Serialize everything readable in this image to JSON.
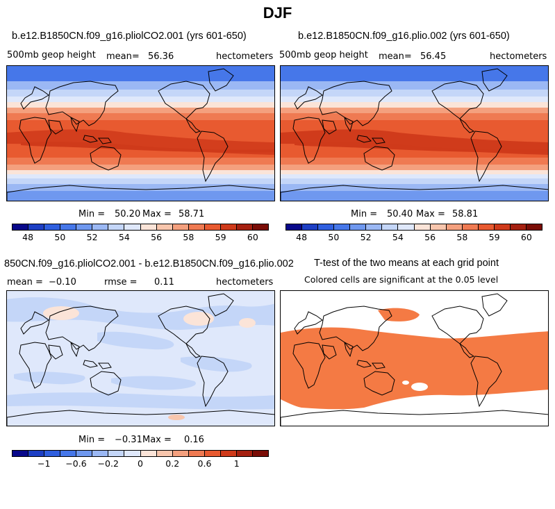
{
  "figure": {
    "title": "DJF"
  },
  "palette": {
    "bwr": [
      "#08088a",
      "#1d3fc4",
      "#2f5fdf",
      "#4677e9",
      "#6f98ef",
      "#9bb8f4",
      "#c4d6f8",
      "#dfe8fb",
      "#fbe4d8",
      "#f8c6ad",
      "#f4a07e",
      "#ef7a52",
      "#e85a30",
      "#cf3a1a",
      "#a52010",
      "#7a0d06"
    ],
    "significant": "#f47a44",
    "ocean_background": "#fff"
  },
  "panels": {
    "p1": {
      "title": "b.e12.B1850CN.f09_g16.pliolCO2.001 (yrs 601-650)",
      "left_label": "500mb geop height",
      "mean_label": "mean=",
      "mean_value": "56.36",
      "units": "hectometers",
      "min_label": "Min =",
      "min_value": "50.20",
      "max_label": "Max =",
      "max_value": "58.71",
      "colorbar_ticks": [
        "48",
        "50",
        "52",
        "54",
        "56",
        "58",
        "59",
        "60"
      ]
    },
    "p2": {
      "title": "b.e12.B1850CN.f09_g16.plio.002 (yrs 601-650)",
      "left_label": "500mb geop height",
      "mean_label": "mean=",
      "mean_value": "56.45",
      "units": "hectometers",
      "min_label": "Min =",
      "min_value": "50.40",
      "max_label": "Max =",
      "max_value": "58.81",
      "colorbar_ticks": [
        "48",
        "50",
        "52",
        "54",
        "56",
        "58",
        "59",
        "60"
      ]
    },
    "p3": {
      "title": "850CN.f09_g16.pliolCO2.001 - b.e12.B1850CN.f09_g16.plio.002",
      "mean_label": "mean =",
      "mean_value": "−0.10",
      "rmse_label": "rmse =",
      "rmse_value": "0.11",
      "units": "hectometers",
      "min_label": "Min =",
      "min_value": "−0.31",
      "max_label": "Max =",
      "max_value": "0.16",
      "colorbar_ticks": [
        "−1",
        "−0.6",
        "−0.2",
        "0",
        "0.2",
        "0.6",
        "1"
      ]
    },
    "p4": {
      "title": "T-test of the two means at each grid point",
      "subtitle": "Colored cells are significant at the 0.05 level"
    }
  }
}
